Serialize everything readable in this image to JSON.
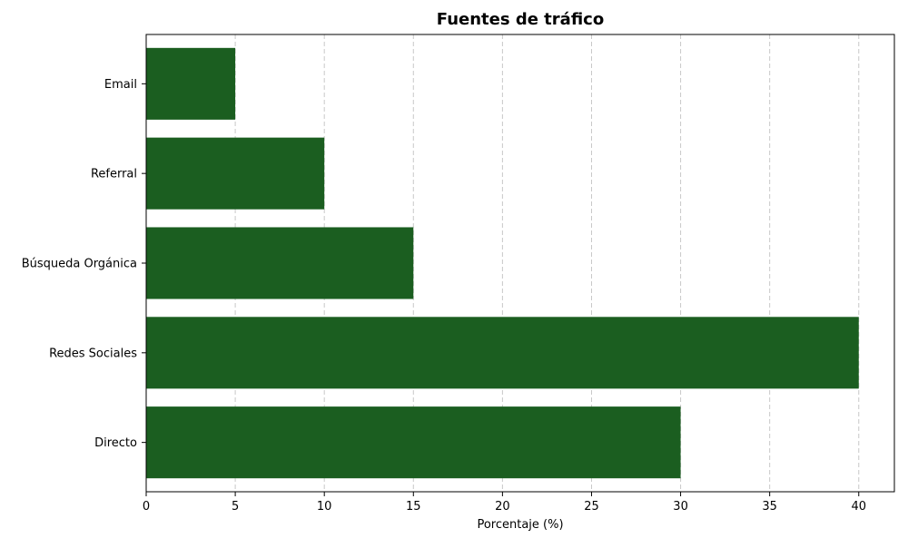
{
  "chart_data": {
    "type": "bar",
    "orientation": "horizontal",
    "title": "Fuentes de tráfico",
    "xlabel": "Porcentaje (%)",
    "ylabel": "",
    "categories": [
      "Directo",
      "Redes Sociales",
      "Búsqueda Orgánica",
      "Referral",
      "Email"
    ],
    "values": [
      30,
      40,
      15,
      10,
      5
    ],
    "xlim": [
      0,
      42
    ],
    "xticks": [
      0,
      5,
      10,
      15,
      20,
      25,
      30,
      35,
      40
    ],
    "grid": "x-dashed",
    "bar_color": "#1b5e20"
  }
}
